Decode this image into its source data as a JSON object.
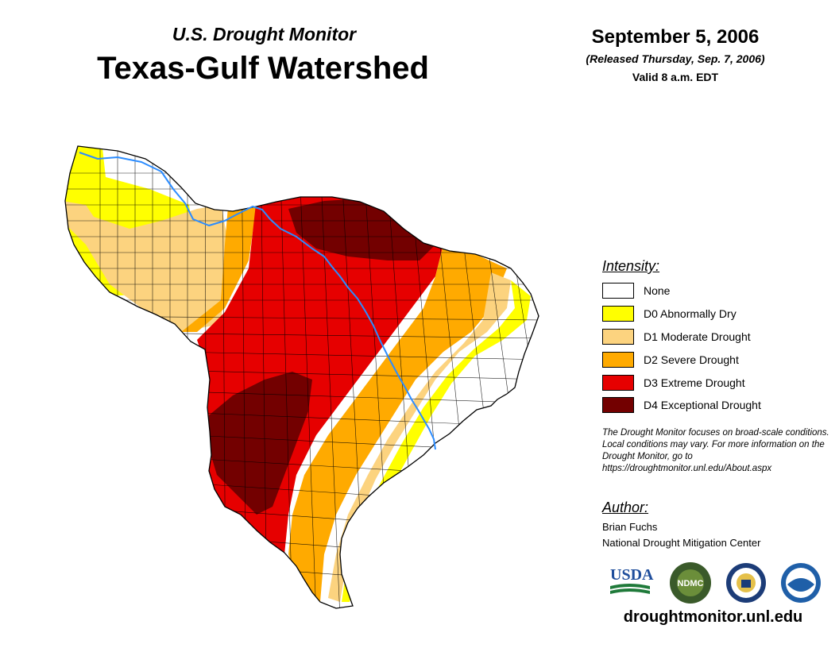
{
  "header": {
    "subtitle": "U.S. Drought Monitor",
    "title": "Texas-Gulf Watershed",
    "date": "September 5, 2006",
    "released": "(Released Thursday, Sep. 7, 2006)",
    "valid": "Valid 8 a.m. EDT"
  },
  "legend": {
    "heading": "Intensity:",
    "items": [
      {
        "label": "None",
        "color": "#ffffff"
      },
      {
        "label": "D0 Abnormally Dry",
        "color": "#ffff00"
      },
      {
        "label": "D1 Moderate Drought",
        "color": "#fcd37f"
      },
      {
        "label": "D2 Severe Drought",
        "color": "#ffaa00"
      },
      {
        "label": "D3 Extreme Drought",
        "color": "#e60000"
      },
      {
        "label": "D4 Exceptional Drought",
        "color": "#730000"
      }
    ]
  },
  "note": "The Drought Monitor focuses on broad-scale conditions. Local conditions may vary. For more information on the Drought Monitor, go to https://droughtmonitor.unl.edu/About.aspx",
  "author": {
    "heading": "Author:",
    "name": "Brian Fuchs",
    "org": "National Drought Mitigation Center"
  },
  "logos": {
    "usda": "USDA",
    "ndmc": "NDMC",
    "noaa": "NOAA"
  },
  "url": "droughtmonitor.unl.edu",
  "colors": {
    "river": "#2b8cff",
    "county_lines": "#000000"
  }
}
